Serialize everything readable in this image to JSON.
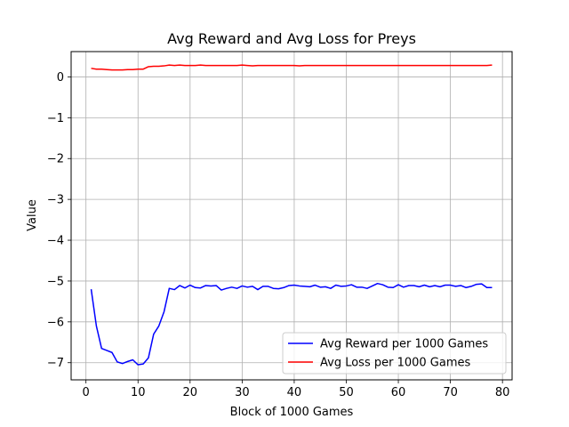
{
  "chart_data": {
    "type": "line",
    "title": "Avg Reward and Avg Loss for Preys",
    "xlabel": "Block of 1000 Games",
    "ylabel": "Value",
    "xlim": [
      -2.85,
      81.85
    ],
    "ylim": [
      -7.42,
      0.62
    ],
    "xticks": [
      0,
      10,
      20,
      30,
      40,
      50,
      60,
      70,
      80
    ],
    "yticks": [
      0,
      -1,
      -2,
      -3,
      -4,
      -5,
      -6,
      -7
    ],
    "xtick_labels": [
      "0",
      "10",
      "20",
      "30",
      "40",
      "50",
      "60",
      "70",
      "80"
    ],
    "ytick_labels": [
      "0",
      "−1",
      "−2",
      "−3",
      "−4",
      "−5",
      "−6",
      "−7"
    ],
    "grid": true,
    "legend_position": "lower-right",
    "series": [
      {
        "name": "Avg Reward per 1000 Games",
        "color": "#0000ff",
        "x": [
          1,
          2,
          3,
          4,
          5,
          6,
          7,
          8,
          9,
          10,
          11,
          12,
          13,
          14,
          15,
          16,
          17,
          18,
          19,
          20,
          21,
          22,
          23,
          24,
          25,
          26,
          27,
          28,
          29,
          30,
          31,
          32,
          33,
          34,
          35,
          36,
          37,
          38,
          39,
          40,
          41,
          42,
          43,
          44,
          45,
          46,
          47,
          48,
          49,
          50,
          51,
          52,
          53,
          54,
          55,
          56,
          57,
          58,
          59,
          60,
          61,
          62,
          63,
          64,
          65,
          66,
          67,
          68,
          69,
          70,
          71,
          72,
          73,
          74,
          75,
          76,
          77,
          78
        ],
        "y": [
          -5.2,
          -6.1,
          -6.65,
          -6.7,
          -6.75,
          -6.98,
          -7.02,
          -6.97,
          -6.93,
          -7.05,
          -7.03,
          -6.88,
          -6.3,
          -6.1,
          -5.75,
          -5.18,
          -5.21,
          -5.11,
          -5.17,
          -5.1,
          -5.16,
          -5.17,
          -5.11,
          -5.12,
          -5.11,
          -5.22,
          -5.18,
          -5.15,
          -5.18,
          -5.12,
          -5.15,
          -5.13,
          -5.21,
          -5.13,
          -5.13,
          -5.18,
          -5.19,
          -5.16,
          -5.11,
          -5.1,
          -5.12,
          -5.13,
          -5.14,
          -5.1,
          -5.15,
          -5.14,
          -5.18,
          -5.1,
          -5.13,
          -5.12,
          -5.09,
          -5.15,
          -5.15,
          -5.18,
          -5.12,
          -5.06,
          -5.09,
          -5.15,
          -5.16,
          -5.09,
          -5.15,
          -5.11,
          -5.11,
          -5.14,
          -5.1,
          -5.14,
          -5.11,
          -5.14,
          -5.1,
          -5.1,
          -5.13,
          -5.11,
          -5.16,
          -5.13,
          -5.08,
          -5.07,
          -5.16,
          -5.16
        ]
      },
      {
        "name": "Avg Loss per 1000 Games",
        "color": "#ff0000",
        "x": [
          1,
          2,
          3,
          4,
          5,
          6,
          7,
          8,
          9,
          10,
          11,
          12,
          13,
          14,
          15,
          16,
          17,
          18,
          19,
          20,
          21,
          22,
          23,
          24,
          25,
          26,
          27,
          28,
          29,
          30,
          31,
          32,
          33,
          34,
          35,
          36,
          37,
          38,
          39,
          40,
          41,
          42,
          43,
          44,
          45,
          46,
          47,
          48,
          49,
          50,
          51,
          52,
          53,
          54,
          55,
          56,
          57,
          58,
          59,
          60,
          61,
          62,
          63,
          64,
          65,
          66,
          67,
          68,
          69,
          70,
          71,
          72,
          73,
          74,
          75,
          76,
          77,
          78
        ],
        "y": [
          0.21,
          0.19,
          0.19,
          0.18,
          0.17,
          0.17,
          0.17,
          0.18,
          0.18,
          0.19,
          0.19,
          0.25,
          0.26,
          0.26,
          0.27,
          0.29,
          0.28,
          0.29,
          0.28,
          0.28,
          0.28,
          0.29,
          0.28,
          0.28,
          0.28,
          0.28,
          0.28,
          0.28,
          0.28,
          0.29,
          0.28,
          0.27,
          0.28,
          0.28,
          0.28,
          0.28,
          0.28,
          0.28,
          0.28,
          0.28,
          0.27,
          0.28,
          0.28,
          0.28,
          0.28,
          0.28,
          0.28,
          0.28,
          0.28,
          0.28,
          0.28,
          0.28,
          0.28,
          0.28,
          0.28,
          0.28,
          0.28,
          0.28,
          0.28,
          0.28,
          0.28,
          0.28,
          0.28,
          0.28,
          0.28,
          0.28,
          0.28,
          0.28,
          0.28,
          0.28,
          0.28,
          0.28,
          0.28,
          0.28,
          0.28,
          0.28,
          0.28,
          0.29
        ]
      }
    ]
  }
}
